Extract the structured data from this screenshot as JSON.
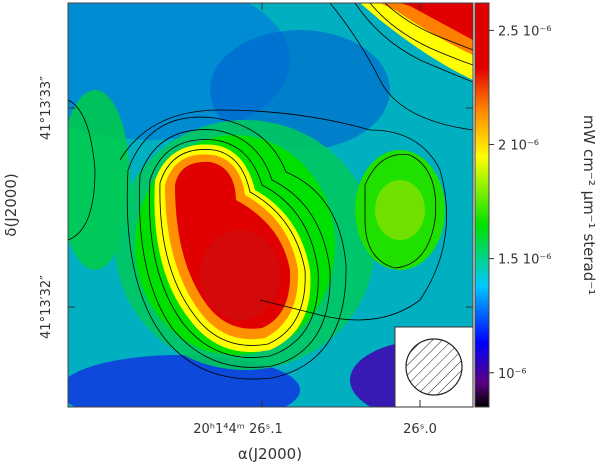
{
  "chart_data": {
    "type": "heatmap",
    "colormap": [
      "#000000",
      "#5a0080",
      "#0000ff",
      "#00c8ff",
      "#00e000",
      "#ffff00",
      "#ff8000",
      "#e00000"
    ],
    "colorbar": {
      "label": "mW cm⁻² μm⁻¹ sterad⁻¹",
      "range": [
        8.5e-07,
        2.62e-06
      ],
      "ticks": [
        {
          "value": 1e-06,
          "label": "10⁻⁶"
        },
        {
          "value": 1.5e-06,
          "label": "1.5 10⁻⁶"
        },
        {
          "value": 2e-06,
          "label": "2 10⁻⁶"
        },
        {
          "value": 2.5e-06,
          "label": "2.5 10⁻⁶"
        }
      ]
    },
    "xaxis": {
      "label": "α(J2000)",
      "ticks": [
        {
          "label": "20ʰ1⁴4ᵐ 26ˢ.1",
          "text": "20h14m26s.1"
        },
        {
          "label": "26ˢ.0",
          "text": "26s.0"
        }
      ]
    },
    "yaxis": {
      "label": "δ(J2000)",
      "ticks": [
        {
          "label": "41°13′33″"
        },
        {
          "label": "41°13′32″"
        }
      ]
    },
    "contours": true,
    "beam": {
      "shape": "circle",
      "hatched": true,
      "position": "bottom-right"
    },
    "sources": [
      {
        "name": "",
        "peak": 2.62e-06
      },
      {
        "name": "",
        "peak": 2.55e-06
      },
      {
        "name": "",
        "peak": 1.7e-06
      },
      {
        "name": "",
        "peak": 2.6e-06
      }
    ]
  }
}
